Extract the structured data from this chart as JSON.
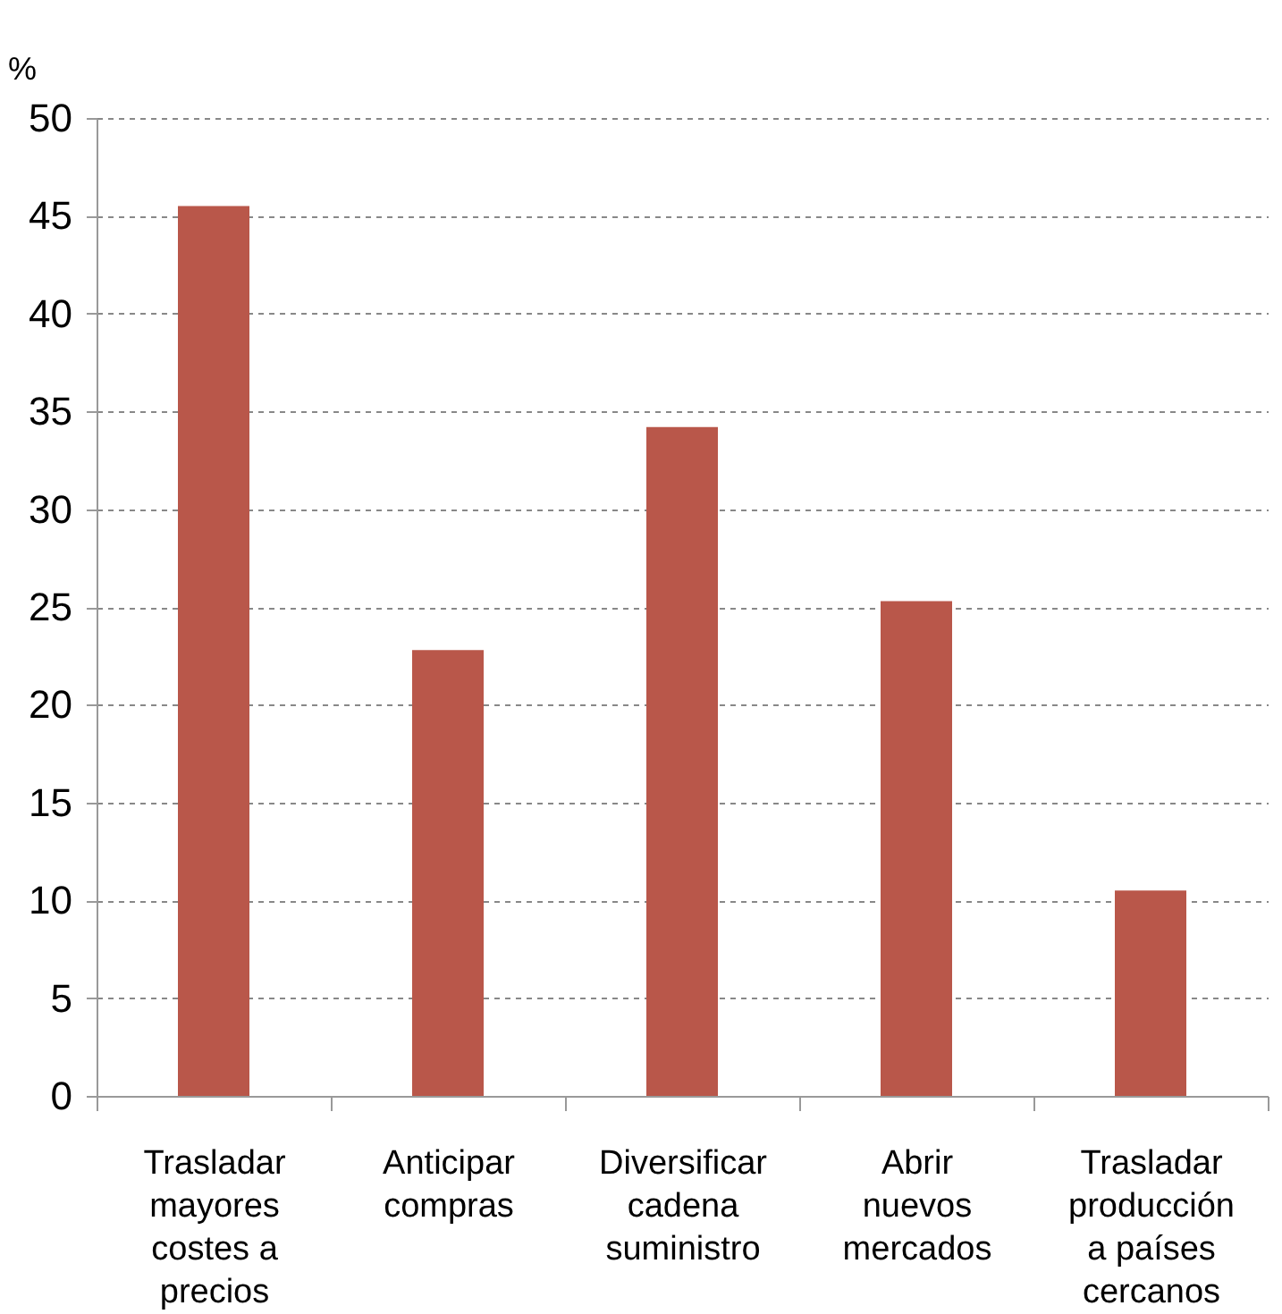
{
  "chart_data": {
    "type": "bar",
    "ylabel": "%",
    "categories": [
      "Trasladar mayores costes a precios",
      "Anticipar compras",
      "Diversificar cadena suministro",
      "Abrir nuevos mercados",
      "Trasladar producción a países cercanos"
    ],
    "values": [
      45.5,
      22.8,
      34.2,
      25.3,
      10.5
    ],
    "color": "#b9574a",
    "ylim": [
      0,
      50
    ],
    "yticks": [
      0,
      5,
      10,
      15,
      20,
      25,
      30,
      35,
      40,
      45,
      50
    ],
    "grid": "y"
  }
}
